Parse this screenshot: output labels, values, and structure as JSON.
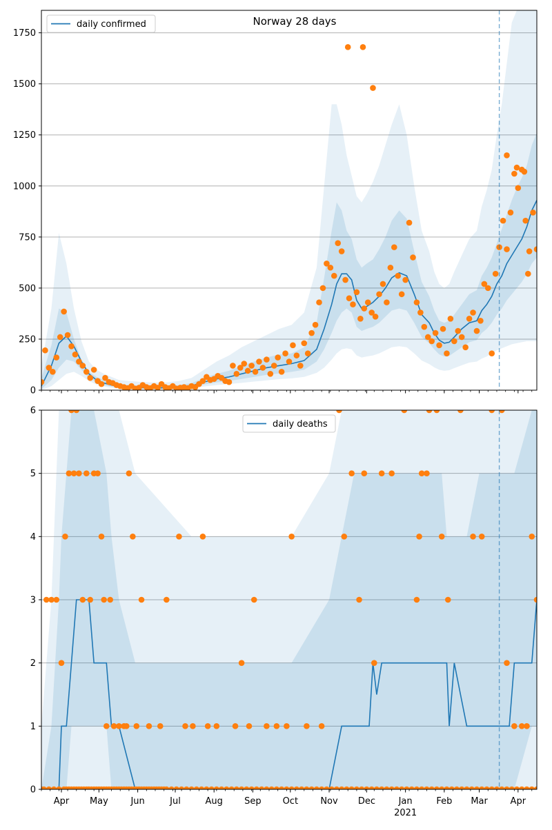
{
  "colors": {
    "line": "#1f77b4",
    "points": "#ff7f0e",
    "band": "#1f77b4",
    "grid": "#b0b0b0",
    "vline": "#1f77b4"
  },
  "chart_data": [
    {
      "type": "line",
      "title": "Norway 28 days",
      "legend": "daily confirmed",
      "legend_loc": "top-left",
      "grid": "horizontal",
      "xlim": [
        0,
        396
      ],
      "ylim": [
        0,
        1860
      ],
      "yticks": [
        0,
        250,
        500,
        750,
        1000,
        1250,
        1500,
        1750
      ],
      "vline_x": 366,
      "line_x": [
        0,
        8,
        14,
        20,
        26,
        32,
        38,
        44,
        50,
        56,
        62,
        70,
        80,
        90,
        100,
        110,
        120,
        130,
        140,
        150,
        160,
        170,
        180,
        190,
        200,
        210,
        220,
        226,
        232,
        236,
        240,
        244,
        248,
        252,
        256,
        260,
        265,
        270,
        275,
        280,
        286,
        292,
        298,
        304,
        310,
        314,
        318,
        322,
        326,
        330,
        336,
        342,
        348,
        352,
        356,
        360,
        364,
        368,
        372,
        376,
        380,
        384,
        388,
        392,
        396
      ],
      "line_y": [
        20,
        120,
        230,
        265,
        215,
        140,
        80,
        50,
        35,
        25,
        18,
        15,
        12,
        10,
        12,
        15,
        22,
        40,
        55,
        65,
        80,
        95,
        110,
        120,
        130,
        145,
        200,
        300,
        420,
        520,
        570,
        570,
        540,
        440,
        400,
        410,
        430,
        460,
        500,
        550,
        575,
        560,
        470,
        370,
        330,
        280,
        245,
        230,
        235,
        260,
        300,
        330,
        340,
        390,
        420,
        460,
        520,
        560,
        620,
        660,
        700,
        740,
        800,
        880,
        930
      ],
      "band1_upper": [
        60,
        220,
        400,
        380,
        250,
        150,
        90,
        65,
        50,
        40,
        30,
        25,
        22,
        20,
        20,
        25,
        35,
        60,
        80,
        95,
        120,
        140,
        160,
        175,
        180,
        210,
        330,
        550,
        780,
        920,
        880,
        780,
        740,
        640,
        600,
        620,
        640,
        690,
        750,
        830,
        880,
        840,
        680,
        530,
        460,
        390,
        340,
        330,
        340,
        370,
        420,
        470,
        490,
        560,
        600,
        650,
        720,
        790,
        860,
        930,
        990,
        1040,
        1100,
        1200,
        1260
      ],
      "band1_lower": [
        5,
        50,
        110,
        150,
        140,
        100,
        60,
        38,
        25,
        18,
        12,
        10,
        8,
        7,
        8,
        10,
        14,
        28,
        38,
        45,
        55,
        65,
        75,
        82,
        90,
        100,
        140,
        200,
        280,
        340,
        380,
        400,
        380,
        310,
        290,
        300,
        310,
        330,
        360,
        390,
        400,
        390,
        330,
        260,
        230,
        200,
        175,
        165,
        168,
        185,
        210,
        235,
        245,
        280,
        300,
        330,
        370,
        400,
        440,
        470,
        500,
        530,
        570,
        620,
        650
      ],
      "band2_upper": [
        120,
        400,
        770,
        620,
        400,
        240,
        140,
        100,
        80,
        65,
        50,
        45,
        40,
        38,
        38,
        45,
        60,
        100,
        140,
        170,
        210,
        240,
        270,
        300,
        320,
        380,
        600,
        1000,
        1400,
        1400,
        1300,
        1150,
        1050,
        950,
        920,
        960,
        1020,
        1100,
        1200,
        1300,
        1400,
        1250,
        1000,
        780,
        680,
        580,
        520,
        500,
        520,
        580,
        660,
        740,
        780,
        900,
        980,
        1080,
        1250,
        1400,
        1600,
        1800,
        1860,
        1860,
        1860,
        1860,
        1860
      ],
      "band2_lower": [
        0,
        20,
        50,
        80,
        90,
        70,
        45,
        28,
        18,
        12,
        8,
        6,
        5,
        4,
        5,
        6,
        9,
        18,
        25,
        30,
        36,
        42,
        48,
        54,
        58,
        65,
        85,
        110,
        150,
        180,
        200,
        205,
        200,
        170,
        160,
        165,
        170,
        180,
        195,
        210,
        215,
        210,
        180,
        145,
        128,
        112,
        100,
        95,
        98,
        108,
        122,
        135,
        140,
        155,
        165,
        180,
        195,
        205,
        215,
        225,
        230,
        235,
        240,
        240,
        240
      ],
      "points_x": [
        0,
        3,
        6,
        9,
        12,
        15,
        18,
        21,
        24,
        27,
        30,
        33,
        36,
        39,
        42,
        45,
        48,
        51,
        54,
        57,
        60,
        63,
        66,
        69,
        72,
        75,
        78,
        81,
        84,
        87,
        90,
        93,
        96,
        99,
        102,
        105,
        108,
        111,
        114,
        117,
        120,
        123,
        126,
        129,
        132,
        135,
        138,
        141,
        144,
        147,
        150,
        153,
        156,
        159,
        162,
        165,
        168,
        171,
        174,
        177,
        180,
        183,
        186,
        189,
        192,
        195,
        198,
        201,
        204,
        207,
        210,
        213,
        216,
        219,
        222,
        225,
        228,
        231,
        234,
        237,
        240,
        243,
        246,
        249,
        252,
        255,
        258,
        261,
        264,
        267,
        270,
        273,
        276,
        279,
        282,
        285,
        288,
        291,
        294,
        297,
        300,
        303,
        306,
        309,
        312,
        315,
        318,
        321,
        324,
        327,
        330,
        333,
        336,
        339,
        342,
        345,
        348,
        351,
        354,
        357,
        360,
        363,
        366,
        369,
        372,
        375,
        378,
        381,
        384,
        387,
        390,
        393,
        396,
        245,
        257,
        265,
        372,
        380,
        386,
        389
      ],
      "points_y": [
        40,
        195,
        110,
        90,
        160,
        260,
        385,
        270,
        215,
        175,
        140,
        120,
        90,
        60,
        100,
        45,
        30,
        60,
        40,
        35,
        25,
        20,
        15,
        10,
        20,
        8,
        12,
        25,
        15,
        10,
        20,
        12,
        30,
        15,
        10,
        20,
        8,
        12,
        15,
        10,
        20,
        15,
        30,
        45,
        65,
        50,
        55,
        70,
        60,
        45,
        40,
        120,
        80,
        110,
        130,
        95,
        120,
        90,
        140,
        110,
        150,
        80,
        120,
        160,
        90,
        180,
        140,
        220,
        170,
        120,
        230,
        180,
        280,
        320,
        430,
        500,
        620,
        600,
        560,
        720,
        680,
        540,
        450,
        420,
        480,
        350,
        400,
        430,
        380,
        360,
        470,
        520,
        430,
        600,
        700,
        560,
        470,
        540,
        820,
        650,
        430,
        380,
        310,
        260,
        240,
        280,
        220,
        300,
        180,
        350,
        240,
        290,
        260,
        210,
        350,
        380,
        290,
        340,
        520,
        500,
        180,
        570,
        700,
        830,
        690,
        870,
        1060,
        990,
        1080,
        830,
        680,
        870,
        690,
        1680,
        1680,
        1480,
        1150,
        1090,
        1070,
        570
      ],
      "x_month_ticks": [
        {
          "x": 16,
          "label": "Apr"
        },
        {
          "x": 46,
          "label": "May"
        },
        {
          "x": 77,
          "label": "Jun"
        },
        {
          "x": 107,
          "label": "Jul"
        },
        {
          "x": 138,
          "label": "Aug"
        },
        {
          "x": 169,
          "label": "Sep"
        },
        {
          "x": 199,
          "label": "Oct"
        },
        {
          "x": 230,
          "label": "Nov"
        },
        {
          "x": 260,
          "label": "Dec"
        },
        {
          "x": 291,
          "label": "Jan"
        },
        {
          "x": 322,
          "label": "Feb"
        },
        {
          "x": 350,
          "label": "Mar"
        },
        {
          "x": 381,
          "label": "Apr"
        }
      ],
      "year_label": {
        "x": 291,
        "label": "2021"
      }
    },
    {
      "type": "line",
      "legend": "daily deaths",
      "legend_loc": "top-center",
      "grid": "horizontal",
      "xlim": [
        0,
        396
      ],
      "ylim": [
        0,
        6
      ],
      "yticks": [
        0,
        1,
        2,
        3,
        4,
        5,
        6
      ],
      "vline_x": 366,
      "line_x": [
        0,
        8,
        14,
        16,
        20,
        24,
        28,
        38,
        42,
        52,
        56,
        62,
        75,
        120,
        160,
        200,
        230,
        240,
        250,
        262,
        265,
        268,
        272,
        276,
        290,
        300,
        310,
        320,
        324,
        326,
        330,
        340,
        350,
        366,
        374,
        378,
        392,
        396
      ],
      "line_y": [
        0,
        0,
        0,
        1,
        1,
        2,
        3,
        3,
        2,
        2,
        1,
        1,
        0,
        0,
        0,
        0,
        0,
        1,
        1,
        1,
        2,
        1.5,
        2,
        2,
        2,
        2,
        2,
        2,
        2,
        1,
        2,
        1,
        1,
        1,
        1,
        2,
        2,
        3
      ],
      "band1_upper": [
        0,
        1,
        3,
        4,
        5,
        6,
        6,
        6,
        6,
        5,
        4,
        3,
        2,
        2,
        2,
        2,
        3,
        4,
        5,
        5,
        5,
        5,
        5,
        5,
        5,
        5,
        5,
        5,
        4,
        4,
        4,
        4,
        5,
        5,
        5,
        5,
        6,
        6
      ],
      "band1_lower": [
        0,
        0,
        0,
        0,
        0,
        1,
        1,
        1,
        1,
        1,
        0,
        0,
        0,
        0,
        0,
        0,
        0,
        0,
        0,
        0,
        0,
        0,
        0,
        0,
        0,
        0,
        0,
        0,
        0,
        0,
        0,
        0,
        0,
        0,
        0,
        0,
        1,
        1
      ],
      "band2_upper": [
        1,
        3,
        6,
        6,
        6,
        6,
        6,
        6,
        6,
        6,
        6,
        6,
        5,
        4,
        4,
        4,
        5,
        6,
        6,
        6,
        6,
        6,
        6,
        6,
        6,
        6,
        6,
        6,
        6,
        6,
        6,
        6,
        6,
        6,
        6,
        6,
        6,
        6
      ],
      "band2_lower": [
        0,
        0,
        0,
        0,
        0,
        0,
        0,
        0,
        0,
        0,
        0,
        0,
        0,
        0,
        0,
        0,
        0,
        0,
        0,
        0,
        0,
        0,
        0,
        0,
        0,
        0,
        0,
        0,
        0,
        0,
        0,
        0,
        0,
        0,
        0,
        0,
        0,
        0
      ],
      "points_x": [
        0,
        4,
        8,
        12,
        16,
        19,
        22,
        24,
        26,
        28,
        30,
        33,
        36,
        39,
        42,
        45,
        48,
        50,
        52,
        55,
        58,
        62,
        66,
        68,
        70,
        73,
        76,
        80,
        86,
        95,
        100,
        110,
        115,
        121,
        129,
        133,
        140,
        155,
        160,
        166,
        170,
        180,
        188,
        196,
        200,
        212,
        224,
        238,
        242,
        248,
        254,
        258,
        266,
        272,
        280,
        290,
        300,
        302,
        304,
        308,
        310,
        316,
        320,
        325,
        335,
        345,
        352,
        360,
        368,
        372,
        378,
        384,
        388,
        392,
        396
      ],
      "points_x2": [
        2,
        6,
        10,
        14,
        18,
        20,
        22,
        24,
        26,
        28,
        30,
        32,
        34,
        36,
        38,
        40,
        42,
        44,
        46,
        48,
        50,
        52,
        54,
        56,
        58,
        60,
        62,
        64,
        66,
        68,
        70,
        72,
        74,
        76,
        78,
        80,
        82,
        84,
        86,
        88,
        90,
        92,
        94,
        96,
        98,
        100,
        104,
        108,
        112,
        116,
        120,
        124,
        128,
        132,
        136,
        140,
        144,
        148,
        152,
        156,
        160,
        164,
        168,
        172,
        176,
        180,
        184,
        188,
        192,
        196,
        200,
        204,
        208,
        212,
        216,
        220,
        224,
        228,
        232,
        236,
        240,
        244,
        248,
        252,
        256,
        260,
        264,
        268,
        272,
        276,
        280,
        284,
        288,
        292,
        296,
        300,
        304,
        308,
        312,
        316,
        320,
        324,
        328,
        332,
        336,
        340,
        344,
        348,
        352,
        356,
        360,
        364,
        368,
        372,
        376,
        380,
        384,
        388,
        392,
        396
      ],
      "points_y": [
        0,
        3,
        3,
        3,
        2,
        4,
        5,
        6,
        5,
        6,
        5,
        3,
        5,
        3,
        5,
        5,
        4,
        3,
        1,
        3,
        1,
        1,
        1,
        1,
        5,
        4,
        1,
        3,
        1,
        1,
        3,
        4,
        1,
        1,
        4,
        1,
        1,
        1,
        2,
        1,
        3,
        1,
        1,
        1,
        4,
        1,
        1,
        6,
        4,
        5,
        3,
        5,
        2,
        5,
        5,
        6,
        3,
        4,
        5,
        5,
        6,
        6,
        4,
        3,
        6,
        4,
        4,
        6,
        6,
        2,
        1,
        1,
        1,
        4,
        3
      ],
      "points_y2": [
        0,
        0,
        0,
        0,
        0,
        0,
        0,
        0,
        0,
        0,
        0,
        0,
        0,
        0,
        0,
        0,
        0,
        0,
        0,
        0,
        0,
        0,
        0,
        0,
        0,
        0,
        0,
        0,
        0,
        0,
        0,
        0,
        0,
        0,
        0,
        0,
        0,
        0,
        0,
        0,
        0,
        0,
        0,
        0,
        0,
        0,
        0,
        0,
        0,
        0,
        0,
        0,
        0,
        0,
        0,
        0,
        0,
        0,
        0,
        0,
        0,
        0,
        0,
        0,
        0,
        0,
        0,
        0,
        0,
        0,
        0,
        0,
        0,
        0,
        0,
        0,
        0,
        0,
        0,
        0,
        0,
        0,
        0,
        0,
        0,
        0,
        0,
        0,
        0,
        0,
        0,
        0,
        0,
        0,
        0,
        0,
        0,
        0,
        0,
        0,
        0,
        0,
        0,
        0,
        0,
        0,
        0,
        0,
        0,
        0,
        0,
        0,
        0,
        0,
        0,
        0,
        0,
        0,
        0,
        0
      ],
      "x_month_ticks": [
        {
          "x": 16,
          "label": "Apr"
        },
        {
          "x": 46,
          "label": "May"
        },
        {
          "x": 77,
          "label": "Jun"
        },
        {
          "x": 107,
          "label": "Jul"
        },
        {
          "x": 138,
          "label": "Aug"
        },
        {
          "x": 169,
          "label": "Sep"
        },
        {
          "x": 199,
          "label": "Oct"
        },
        {
          "x": 230,
          "label": "Nov"
        },
        {
          "x": 260,
          "label": "Dec"
        },
        {
          "x": 291,
          "label": "Jan"
        },
        {
          "x": 322,
          "label": "Feb"
        },
        {
          "x": 350,
          "label": "Mar"
        },
        {
          "x": 381,
          "label": "Apr"
        }
      ],
      "year_label": {
        "x": 291,
        "label": "2021"
      }
    }
  ]
}
